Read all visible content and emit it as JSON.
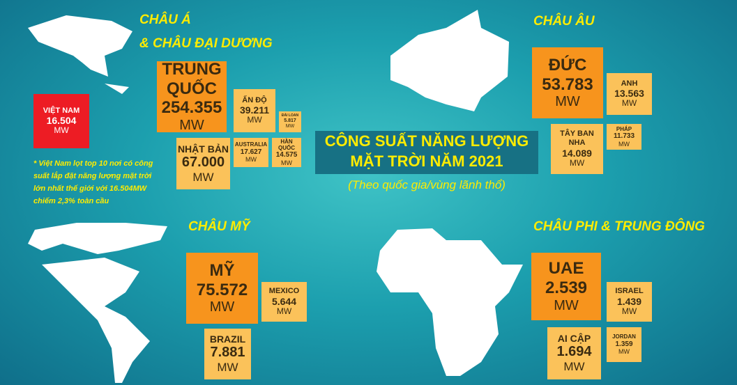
{
  "title": {
    "line1": "CÔNG SUẤT NĂNG LƯỢNG",
    "line2": "MẶT TRỜI NĂM 2021",
    "subtitle": "(Theo quốc gia/vùng lãnh thổ)"
  },
  "asia": {
    "heading1": "CHÂU Á",
    "heading2": "& CHÂU ĐẠI DƯƠNG",
    "boxes": [
      {
        "name": "TRUNG QUỐC",
        "value": "254.355",
        "unit": "MW"
      },
      {
        "name": "ẤN ĐỘ",
        "value": "39.211",
        "unit": "MW"
      },
      {
        "name": "ĐÀI LOAN",
        "value": "5.817",
        "unit": "MW"
      },
      {
        "name": "NHẬT BẢN",
        "value": "67.000",
        "unit": "MW"
      },
      {
        "name": "AUSTRALIA",
        "value": "17.627",
        "unit": "MW"
      },
      {
        "name": "HÀN QUỐC",
        "value": "14.575",
        "unit": "MW"
      },
      {
        "name": "VIỆT NAM",
        "value": "16.504",
        "unit": "MW"
      }
    ],
    "note": "* Việt Nam lọt top 10 nơi có công suất lắp đặt năng lượng mặt trời lớn nhất thế giới với 16.504MW chiếm 2,3% toàn cầu"
  },
  "europe": {
    "heading": "CHÂU ÂU",
    "boxes": [
      {
        "name": "ĐỨC",
        "value": "53.783",
        "unit": "MW"
      },
      {
        "name": "ANH",
        "value": "13.563",
        "unit": "MW"
      },
      {
        "name": "TÂY BAN NHA",
        "value": "14.089",
        "unit": "MW"
      },
      {
        "name": "PHÁP",
        "value": "11.733",
        "unit": "MW"
      }
    ]
  },
  "america": {
    "heading": "CHÂU MỸ",
    "boxes": [
      {
        "name": "MỸ",
        "value": "75.572",
        "unit": "MW"
      },
      {
        "name": "MEXICO",
        "value": "5.644",
        "unit": "MW"
      },
      {
        "name": "BRAZIL",
        "value": "7.881",
        "unit": "MW"
      }
    ]
  },
  "africa": {
    "heading": "CHÂU PHI & TRUNG ĐÔNG",
    "boxes": [
      {
        "name": "UAE",
        "value": "2.539",
        "unit": "MW"
      },
      {
        "name": "ISRAEL",
        "value": "1.439",
        "unit": "MW"
      },
      {
        "name": "AI CẬP",
        "value": "1.694",
        "unit": "MW"
      },
      {
        "name": "JORDAN",
        "value": "1.359",
        "unit": "MW"
      }
    ]
  }
}
